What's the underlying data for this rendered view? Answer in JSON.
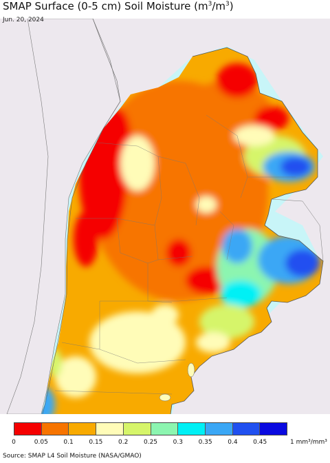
{
  "title": {
    "main": "SMAP Surface (0-5 cm) Soil Moisture (m",
    "sup1": "3",
    "mid": "/m",
    "sup2": "3",
    "end": ")"
  },
  "date": "Jun. 20, 2024",
  "legend": {
    "ticks": [
      "0",
      "0.05",
      "0.1",
      "0.15",
      "0.2",
      "0.25",
      "0.3",
      "0.35",
      "0.4",
      "0.45"
    ],
    "unit": "1 mm³/mm³",
    "colors": [
      "#f50000",
      "#f77400",
      "#f8aa00",
      "#fffcb8",
      "#d6f56a",
      "#8cf5b0",
      "#00f0f5",
      "#3aa7f5",
      "#2050f0",
      "#0a0ae0"
    ]
  },
  "source": "Source: SMAP L4 Soil Moisture (NASA/GMAO)",
  "colors": {
    "ocean": "#c8f5f8",
    "neighbor_land": "#ede8ee",
    "border": "#666666"
  }
}
